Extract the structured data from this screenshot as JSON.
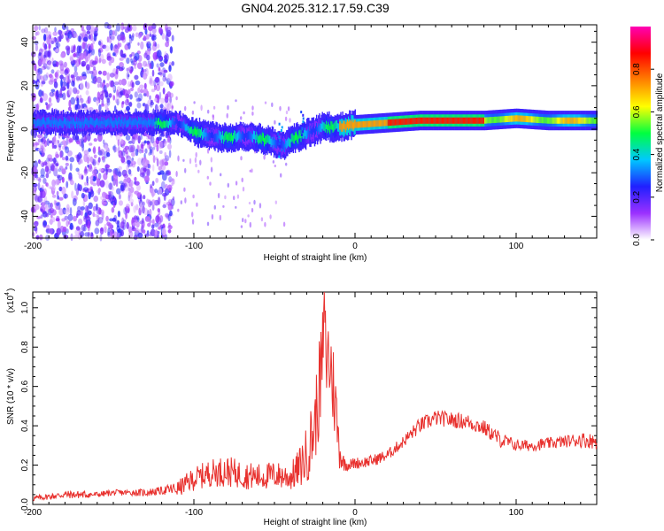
{
  "chart_data": [
    {
      "type": "heatmap",
      "title": "GN04.2025.312.17.59.C39",
      "xlabel": "Height of straight line (km)",
      "ylabel": "Frequency (Hz)",
      "xlim": [
        -200,
        150
      ],
      "ylim": [
        -50,
        48
      ],
      "xticks": [
        -200,
        -100,
        0,
        100
      ],
      "xtick_labels": [
        "-200",
        "-100",
        "0",
        "100"
      ],
      "yticks": [
        -40,
        -20,
        0,
        20,
        40
      ],
      "ytick_labels": [
        "-40",
        "-20",
        "0",
        "20",
        "40"
      ],
      "colorbar": {
        "label": "Normalized spectral amplitude",
        "range": [
          0,
          1
        ],
        "ticks": [
          0.0,
          0.2,
          0.4,
          0.6,
          0.8
        ],
        "tick_labels": [
          "0.0",
          "0.2",
          "0.4",
          "0.6",
          "0.8"
        ],
        "colors": [
          "#ffffff",
          "#9b30ff",
          "#2020ff",
          "#00c8ff",
          "#00ff40",
          "#ffff00",
          "#ff8000",
          "#ff0000",
          "#ff00b4"
        ]
      },
      "ridge": {
        "x": [
          -200,
          -180,
          -160,
          -140,
          -125,
          -110,
          -100,
          -90,
          -80,
          -70,
          -60,
          -50,
          -45,
          -40,
          -30,
          -20,
          -10,
          0,
          20,
          40,
          60,
          80,
          100,
          120,
          150
        ],
        "frequency": [
          3,
          3,
          3,
          3,
          3,
          3,
          -1,
          -3,
          -4,
          -3,
          -4,
          -6,
          -8,
          -5,
          -2,
          1,
          1,
          2,
          3,
          4,
          4,
          4,
          5,
          4,
          4
        ]
      }
    },
    {
      "type": "line",
      "xlabel": "Height of straight line (km)",
      "ylabel": "SNR (10 * v/v)",
      "yscale_label": "(x10",
      "yscale_exponent": "4",
      "xlim": [
        -200,
        150
      ],
      "ylim": [
        0,
        1.08
      ],
      "xticks": [
        -200,
        -100,
        0,
        100
      ],
      "xtick_labels": [
        "-200",
        "-100",
        "0",
        "100"
      ],
      "yticks": [
        0.0,
        0.2,
        0.4,
        0.6,
        0.8,
        1.0
      ],
      "ytick_labels": [
        "0.0",
        "0.2",
        "0.4",
        "0.6",
        "0.8",
        "1.0"
      ],
      "color": "#e8312e",
      "series": [
        {
          "name": "SNR",
          "x": [
            -200,
            -190,
            -180,
            -170,
            -160,
            -150,
            -140,
            -130,
            -120,
            -110,
            -100,
            -90,
            -80,
            -70,
            -60,
            -50,
            -40,
            -35,
            -30,
            -25,
            -22,
            -20,
            -18,
            -15,
            -12,
            -10,
            -8,
            -5,
            0,
            10,
            20,
            30,
            40,
            50,
            60,
            70,
            80,
            90,
            100,
            110,
            120,
            130,
            140,
            150
          ],
          "y": [
            0.03,
            0.04,
            0.05,
            0.05,
            0.05,
            0.06,
            0.06,
            0.06,
            0.07,
            0.08,
            0.13,
            0.16,
            0.17,
            0.15,
            0.14,
            0.15,
            0.14,
            0.18,
            0.25,
            0.4,
            0.6,
            0.75,
            0.78,
            0.7,
            0.5,
            0.3,
            0.22,
            0.2,
            0.21,
            0.22,
            0.25,
            0.32,
            0.4,
            0.44,
            0.43,
            0.42,
            0.39,
            0.33,
            0.3,
            0.3,
            0.31,
            0.32,
            0.33,
            0.32
          ],
          "noise_amplitude": [
            0.015,
            0.015,
            0.02,
            0.02,
            0.015,
            0.015,
            0.015,
            0.02,
            0.02,
            0.04,
            0.06,
            0.07,
            0.08,
            0.07,
            0.07,
            0.07,
            0.07,
            0.1,
            0.15,
            0.2,
            0.25,
            0.28,
            0.28,
            0.25,
            0.2,
            0.12,
            0.05,
            0.03,
            0.03,
            0.03,
            0.03,
            0.03,
            0.04,
            0.04,
            0.04,
            0.04,
            0.04,
            0.04,
            0.03,
            0.03,
            0.03,
            0.03,
            0.04,
            0.04
          ],
          "peak": {
            "x": -19,
            "y": 1.08
          }
        }
      ]
    }
  ]
}
